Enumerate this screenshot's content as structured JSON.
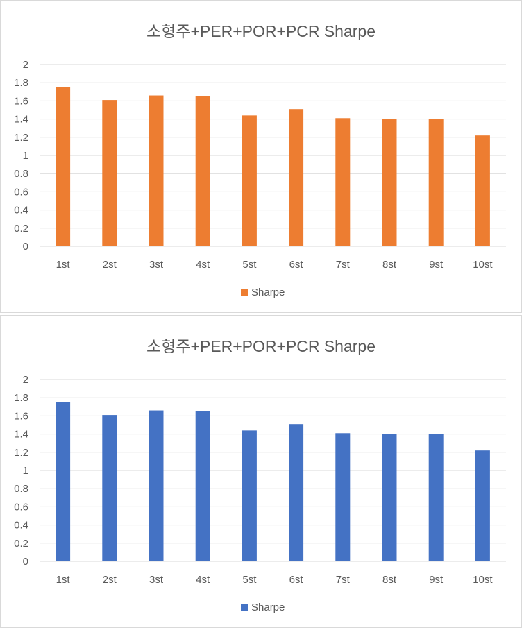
{
  "chart_data": [
    {
      "type": "bar",
      "title": "소형주+PER+POR+PCR Sharpe",
      "xlabel": "",
      "ylabel": "",
      "categories": [
        "1st",
        "2nd",
        "3rd",
        "4th",
        "5th",
        "6th",
        "7th",
        "8th",
        "9th",
        "10th"
      ],
      "category_labels": [
        "1st",
        "2st",
        "3st",
        "4st",
        "5st",
        "6st",
        "7st",
        "8st",
        "9st",
        "10st"
      ],
      "series": [
        {
          "name": "Sharpe",
          "values": [
            1.75,
            1.61,
            1.66,
            1.65,
            1.44,
            1.51,
            1.41,
            1.4,
            1.4,
            1.22
          ],
          "color": "#ED7D31"
        }
      ],
      "ylim": [
        0,
        2
      ],
      "yticks": [
        "0",
        "0.2",
        "0.4",
        "0.6",
        "0.8",
        "1",
        "1.2",
        "1.4",
        "1.6",
        "1.8",
        "2"
      ],
      "grid": true,
      "legend": "bottom"
    },
    {
      "type": "bar",
      "title": "소형주+PER+POR+PCR Sharpe",
      "xlabel": "",
      "ylabel": "",
      "categories": [
        "1st",
        "2nd",
        "3rd",
        "4th",
        "5th",
        "6th",
        "7th",
        "8th",
        "9th",
        "10th"
      ],
      "category_labels": [
        "1st",
        "2st",
        "3st",
        "4st",
        "5st",
        "6st",
        "7st",
        "8st",
        "9st",
        "10st"
      ],
      "series": [
        {
          "name": "Sharpe",
          "values": [
            1.75,
            1.61,
            1.66,
            1.65,
            1.44,
            1.51,
            1.41,
            1.4,
            1.4,
            1.22
          ],
          "color": "#4472C4"
        }
      ],
      "ylim": [
        0,
        2
      ],
      "yticks": [
        "0",
        "0.2",
        "0.4",
        "0.6",
        "0.8",
        "1",
        "1.2",
        "1.4",
        "1.6",
        "1.8",
        "2"
      ],
      "grid": true,
      "legend": "bottom"
    }
  ],
  "colors": {
    "grid": "#d9d9d9",
    "text": "#595959",
    "border": "#d9d9d9"
  }
}
